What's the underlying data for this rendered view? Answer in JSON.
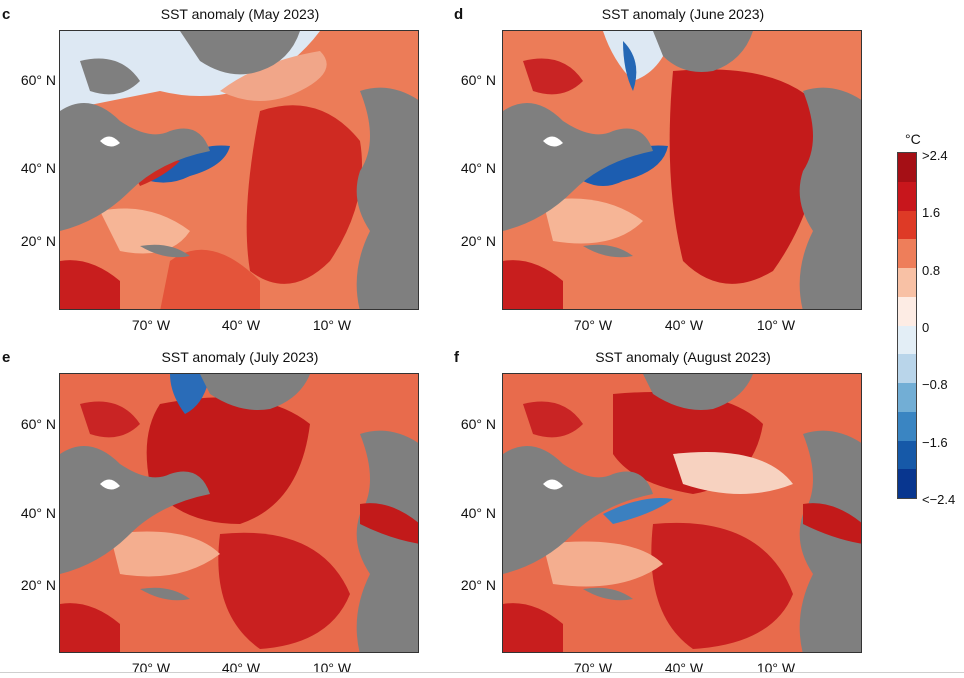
{
  "panels": [
    {
      "letter": "c",
      "title": "SST anomaly (May 2023)",
      "lat_labels": [
        "60° N",
        "40° N",
        "20° N"
      ],
      "lon_labels": [
        "70° W",
        "40° W",
        "10° W"
      ]
    },
    {
      "letter": "d",
      "title": "SST anomaly (June 2023)",
      "lat_labels": [
        "60° N",
        "40° N",
        "20° N"
      ],
      "lon_labels": [
        "70° W",
        "40° W",
        "10° W"
      ]
    },
    {
      "letter": "e",
      "title": "SST anomaly (July 2023)",
      "lat_labels": [
        "60° N",
        "40° N",
        "20° N"
      ],
      "lon_labels": [
        "70° W",
        "40° W",
        "10° W"
      ]
    },
    {
      "letter": "f",
      "title": "SST anomaly (August 2023)",
      "lat_labels": [
        "60° N",
        "40° N",
        "20° N"
      ],
      "lon_labels": [
        "70° W",
        "40° W",
        "10° W"
      ]
    }
  ],
  "colorbar": {
    "unit": "°C",
    "ticks": [
      ">2.4",
      "1.6",
      "0.8",
      "0",
      "−0.8",
      "−1.6",
      "<−2.4"
    ],
    "colors": [
      "#a50f15",
      "#c8161c",
      "#de3a26",
      "#ee7e5a",
      "#f8c1a5",
      "#fdece4",
      "#e3eef6",
      "#b9d5ea",
      "#72aed5",
      "#3a85c2",
      "#1659a8",
      "#08368f"
    ]
  },
  "colors": {
    "land": "#7f7f7f",
    "ocean_warm": "#e96f4f",
    "ocean_hot": "#c81e1e",
    "ocean_mild": "#f7bca0",
    "ocean_cold": "#1f63b3",
    "ice_light": "#dfe9f4",
    "lakes": "#ffffff"
  }
}
